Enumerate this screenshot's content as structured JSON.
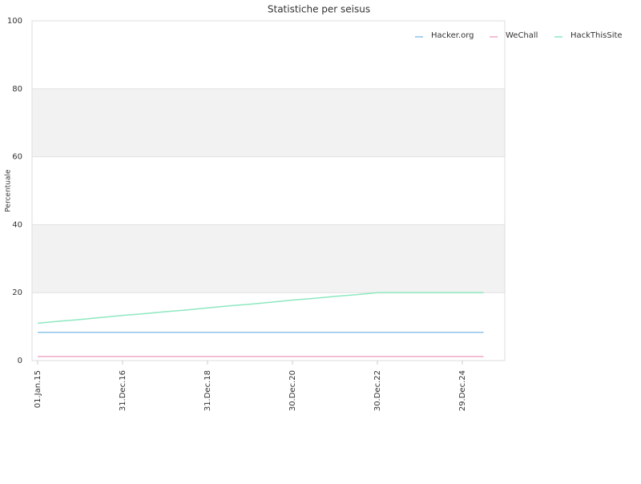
{
  "chart_data": {
    "type": "line",
    "title": "Statistiche per seisus",
    "y_label": "Percentuale",
    "categories": [
      "01.Jan.15",
      null,
      null,
      null,
      "31.Dec.16",
      null,
      null,
      null,
      "31.Dec.18",
      null,
      null,
      null,
      "30.Dec.20",
      null,
      null,
      null,
      "30.Dec.22",
      null,
      null,
      null,
      "29.Dec.24",
      null
    ],
    "series": [
      {
        "name": "Hacker.org",
        "color": "#8ec3e8",
        "values": [
          8.3,
          8.3,
          8.3,
          8.3,
          8.3,
          8.3,
          8.3,
          8.3,
          8.3,
          8.3,
          8.3,
          8.3,
          8.3,
          8.3,
          8.3,
          8.3,
          8.3,
          8.3,
          8.3,
          8.3,
          8.3,
          8.3
        ]
      },
      {
        "name": "WeChall",
        "color": "#f0a8c8",
        "values": [
          1.2,
          1.2,
          1.2,
          1.2,
          1.2,
          1.2,
          1.2,
          1.2,
          1.2,
          1.2,
          1.2,
          1.2,
          1.2,
          1.2,
          1.2,
          1.2,
          1.2,
          1.2,
          1.2,
          1.2,
          1.2,
          1.2
        ]
      },
      {
        "name": "HackThisSite",
        "color": "#8ee8c0",
        "values": [
          11,
          11.6,
          12.1,
          12.7,
          13.3,
          13.8,
          14.4,
          14.9,
          15.5,
          16.1,
          16.6,
          17.2,
          17.8,
          18.3,
          18.9,
          19.4,
          20,
          20,
          20,
          20,
          20,
          20
        ]
      }
    ],
    "ylim": [
      0,
      100
    ],
    "yticks": [
      0,
      20,
      40,
      60,
      80,
      100
    ],
    "grid": true,
    "legend": "top-right"
  }
}
